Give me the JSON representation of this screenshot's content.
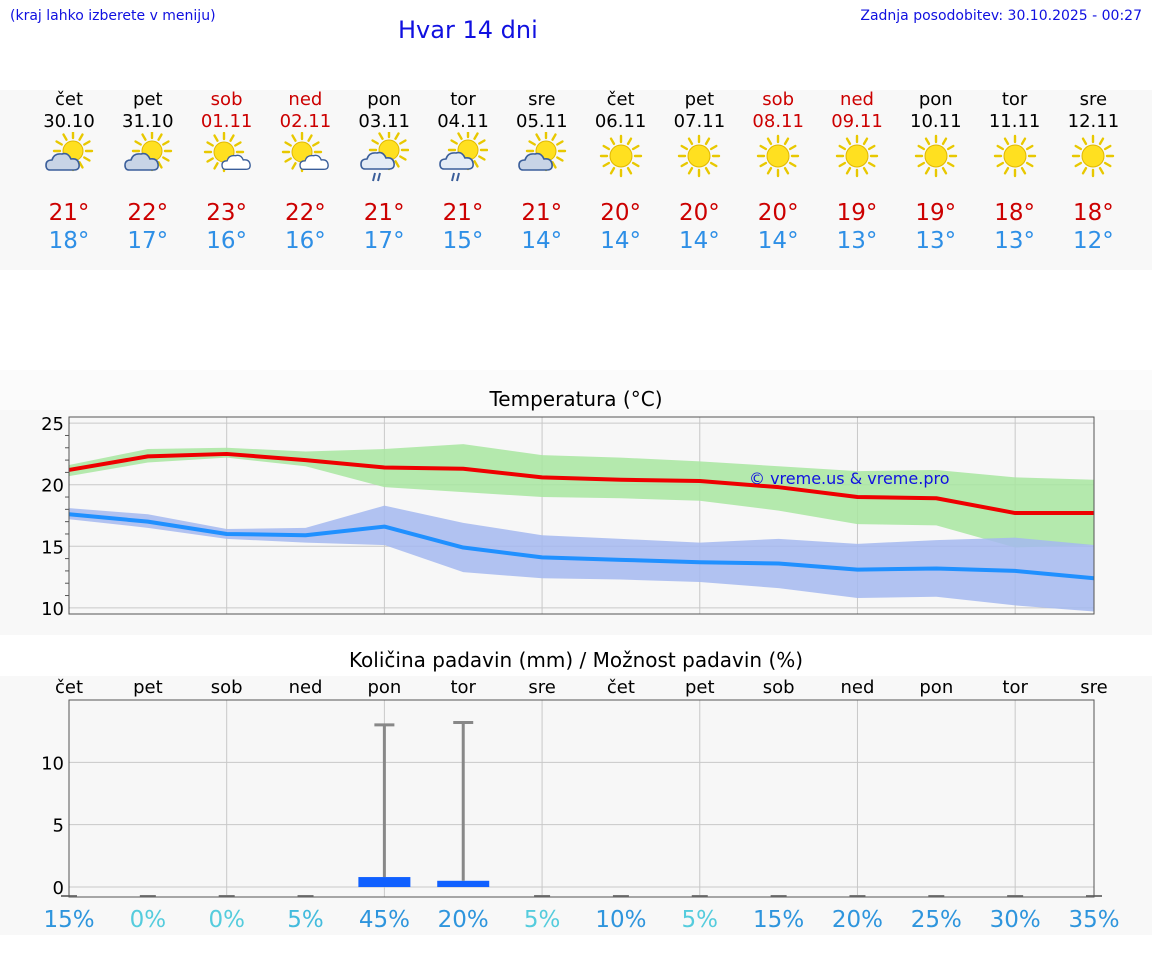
{
  "header": {
    "location_hint": "(kraj lahko izberete v meniju)",
    "title": "Hvar 14 dni",
    "updated": "Zadnja posodobitev: 30.10.2025 - 00:27"
  },
  "forecast": [
    {
      "day": "čet",
      "date": "30.10",
      "icon": "sun-cloud-icon",
      "max": "21°",
      "min": "18°",
      "weekend": false
    },
    {
      "day": "pet",
      "date": "31.10",
      "icon": "sun-cloud-icon",
      "max": "22°",
      "min": "17°",
      "weekend": false
    },
    {
      "day": "sob",
      "date": "01.11",
      "icon": "sun-small-cloud-icon",
      "max": "23°",
      "min": "16°",
      "weekend": true
    },
    {
      "day": "ned",
      "date": "02.11",
      "icon": "sun-small-cloud-icon",
      "max": "22°",
      "min": "16°",
      "weekend": true
    },
    {
      "day": "pon",
      "date": "03.11",
      "icon": "sun-cloud-rain-icon",
      "max": "21°",
      "min": "17°",
      "weekend": false
    },
    {
      "day": "tor",
      "date": "04.11",
      "icon": "sun-cloud-rain-icon",
      "max": "21°",
      "min": "15°",
      "weekend": false
    },
    {
      "day": "sre",
      "date": "05.11",
      "icon": "sun-cloud-icon",
      "max": "21°",
      "min": "14°",
      "weekend": false
    },
    {
      "day": "čet",
      "date": "06.11",
      "icon": "sun-icon",
      "max": "20°",
      "min": "14°",
      "weekend": false
    },
    {
      "day": "pet",
      "date": "07.11",
      "icon": "sun-icon",
      "max": "20°",
      "min": "14°",
      "weekend": false
    },
    {
      "day": "sob",
      "date": "08.11",
      "icon": "sun-icon",
      "max": "20°",
      "min": "14°",
      "weekend": true
    },
    {
      "day": "ned",
      "date": "09.11",
      "icon": "sun-icon",
      "max": "19°",
      "min": "13°",
      "weekend": true
    },
    {
      "day": "pon",
      "date": "10.11",
      "icon": "sun-icon",
      "max": "19°",
      "min": "13°",
      "weekend": false
    },
    {
      "day": "tor",
      "date": "11.11",
      "icon": "sun-icon",
      "max": "18°",
      "min": "13°",
      "weekend": false
    },
    {
      "day": "sre",
      "date": "12.11",
      "icon": "sun-icon",
      "max": "18°",
      "min": "12°",
      "weekend": false
    }
  ],
  "colors": {
    "max_line": "#ee0000",
    "min_line": "#2090ff",
    "max_band": "#a8e6a0",
    "min_band": "#a4b8f0",
    "bar": "#1060ff",
    "errbar": "#888888",
    "weekend_text": "#cc0000",
    "title_text": "#1010e0"
  },
  "chart_data": [
    {
      "type": "line",
      "title": "Temperatura (°C)",
      "watermark": "© vreme.us & vreme.pro",
      "x": [
        0,
        1,
        2,
        3,
        4,
        5,
        6,
        7,
        8,
        9,
        10,
        11,
        12,
        13
      ],
      "ylim": [
        9.5,
        25.5
      ],
      "yticks": [
        10,
        15,
        20,
        25
      ],
      "series": [
        {
          "name": "max",
          "values": [
            21.2,
            22.3,
            22.5,
            22.0,
            21.4,
            21.3,
            20.6,
            20.4,
            20.3,
            19.8,
            19.0,
            18.9,
            17.7,
            17.7
          ],
          "band_low": [
            20.7,
            21.8,
            22.2,
            21.5,
            19.8,
            19.4,
            19.0,
            18.9,
            18.7,
            17.9,
            16.8,
            16.7,
            14.9,
            15.1
          ],
          "band_high": [
            21.6,
            22.9,
            23.0,
            22.7,
            22.9,
            23.3,
            22.4,
            22.2,
            21.9,
            21.5,
            21.1,
            21.2,
            20.6,
            20.4
          ]
        },
        {
          "name": "min",
          "values": [
            17.6,
            17.0,
            16.0,
            15.9,
            16.6,
            14.9,
            14.1,
            13.9,
            13.7,
            13.6,
            13.1,
            13.2,
            13.0,
            12.4
          ],
          "band_low": [
            17.2,
            16.5,
            15.6,
            15.3,
            15.1,
            12.9,
            12.4,
            12.3,
            12.1,
            11.6,
            10.8,
            10.9,
            10.2,
            9.7
          ],
          "band_high": [
            18.1,
            17.6,
            16.4,
            16.5,
            18.3,
            16.9,
            15.9,
            15.6,
            15.3,
            15.6,
            15.2,
            15.5,
            15.7,
            15.1
          ]
        }
      ],
      "grid": true
    },
    {
      "type": "bar",
      "title": "Količina padavin (mm) / Možnost padavin (%)",
      "categories": [
        "čet",
        "pet",
        "sob",
        "ned",
        "pon",
        "tor",
        "sre",
        "čet",
        "pet",
        "sob",
        "ned",
        "pon",
        "tor",
        "sre"
      ],
      "values": [
        0,
        0,
        0,
        0,
        0.8,
        0.5,
        0,
        0,
        0,
        0,
        0,
        0,
        0,
        0
      ],
      "error_high": [
        0,
        0,
        0,
        0,
        13.0,
        13.2,
        0,
        0,
        0,
        0,
        0,
        0,
        0,
        0
      ],
      "ylim": [
        -0.8,
        15.0
      ],
      "yticks": [
        0,
        5,
        10
      ],
      "probability": [
        "15%",
        "0%",
        "0%",
        "5%",
        "45%",
        "20%",
        "5%",
        "10%",
        "5%",
        "15%",
        "20%",
        "25%",
        "30%",
        "35%"
      ],
      "probability_colors": [
        "#2e95dd",
        "#55ccdd",
        "#55ccdd",
        "#44bbdd",
        "#2e95dd",
        "#2e95dd",
        "#55ccdd",
        "#2e95dd",
        "#55ccdd",
        "#2e95dd",
        "#2e95dd",
        "#2e95dd",
        "#2e95dd",
        "#2e95dd"
      ],
      "grid": true
    }
  ]
}
